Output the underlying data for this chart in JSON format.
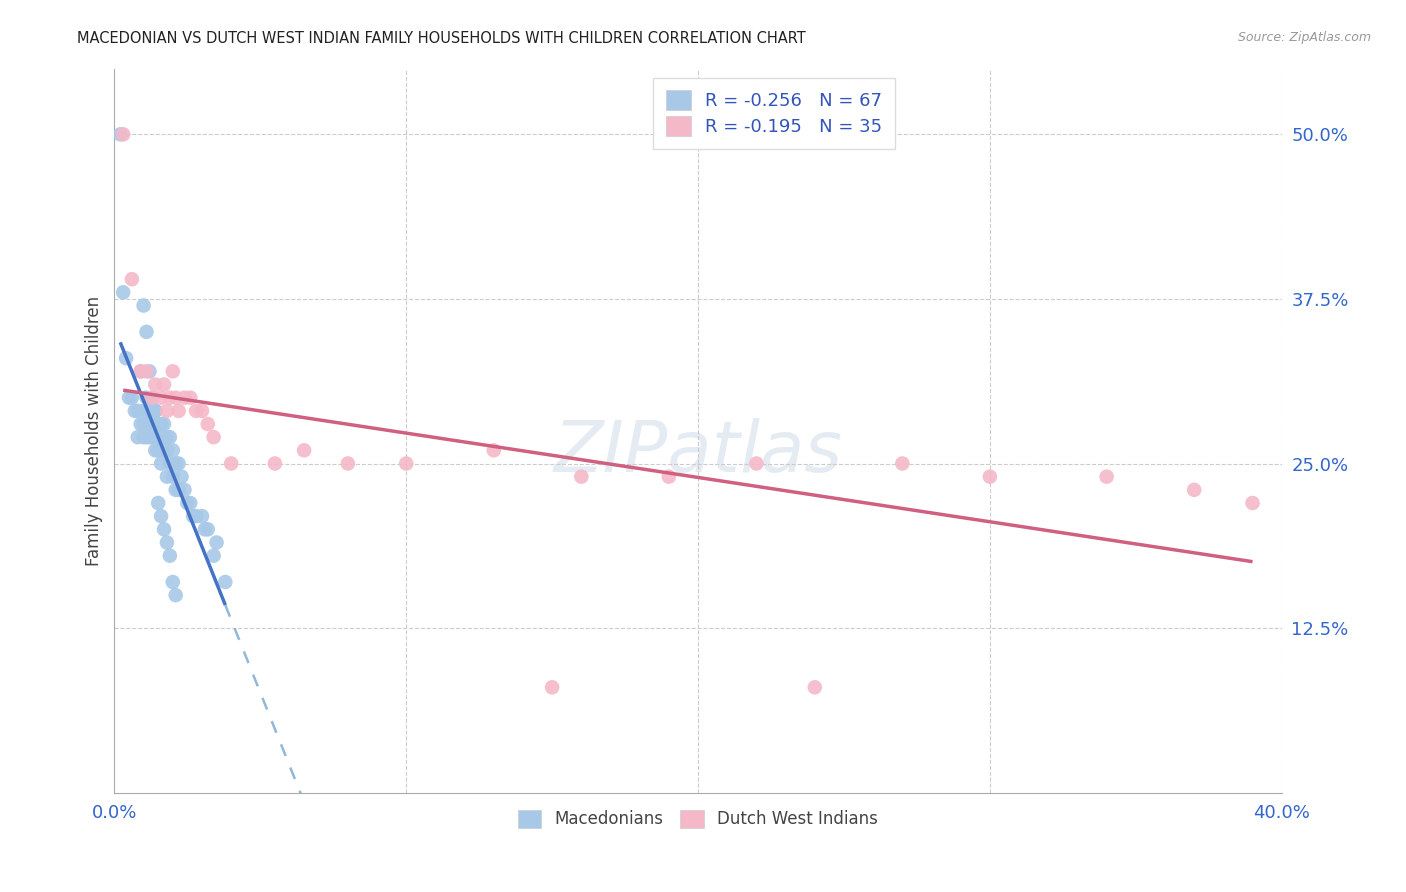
{
  "title": "MACEDONIAN VS DUTCH WEST INDIAN FAMILY HOUSEHOLDS WITH CHILDREN CORRELATION CHART",
  "source": "Source: ZipAtlas.com",
  "ylabel": "Family Households with Children",
  "xlim": [
    0.0,
    0.4
  ],
  "ylim": [
    0.0,
    0.55
  ],
  "xticks": [
    0.0,
    0.05,
    0.1,
    0.15,
    0.2,
    0.25,
    0.3,
    0.35,
    0.4
  ],
  "xticklabels": [
    "0.0%",
    "",
    "",
    "",
    "",
    "",
    "",
    "",
    "40.0%"
  ],
  "yticks_right": [
    0.125,
    0.25,
    0.375,
    0.5
  ],
  "ytick_labels_right": [
    "12.5%",
    "25.0%",
    "37.5%",
    "50.0%"
  ],
  "legend_r1": "-0.256",
  "legend_n1": "67",
  "legend_r2": "-0.195",
  "legend_n2": "35",
  "color_macedonian": "#a8c8e8",
  "color_dutch": "#f4b8c8",
  "color_trend_macedonian": "#4472c4",
  "color_trend_dutch": "#d06080",
  "color_trend_dashed": "#90b8d8",
  "macedonian_x": [
    0.002,
    0.003,
    0.004,
    0.005,
    0.006,
    0.007,
    0.008,
    0.008,
    0.009,
    0.009,
    0.01,
    0.01,
    0.01,
    0.011,
    0.011,
    0.011,
    0.012,
    0.012,
    0.013,
    0.013,
    0.013,
    0.014,
    0.014,
    0.014,
    0.015,
    0.015,
    0.015,
    0.016,
    0.016,
    0.016,
    0.017,
    0.017,
    0.018,
    0.018,
    0.018,
    0.019,
    0.019,
    0.02,
    0.02,
    0.021,
    0.021,
    0.022,
    0.022,
    0.023,
    0.024,
    0.025,
    0.026,
    0.027,
    0.028,
    0.03,
    0.031,
    0.032,
    0.034,
    0.035,
    0.038,
    0.01,
    0.011,
    0.012,
    0.013,
    0.014,
    0.015,
    0.016,
    0.017,
    0.018,
    0.019,
    0.02,
    0.021
  ],
  "macedonian_y": [
    0.5,
    0.38,
    0.33,
    0.3,
    0.3,
    0.29,
    0.29,
    0.27,
    0.32,
    0.28,
    0.29,
    0.28,
    0.27,
    0.3,
    0.28,
    0.27,
    0.29,
    0.27,
    0.3,
    0.28,
    0.27,
    0.29,
    0.27,
    0.26,
    0.28,
    0.27,
    0.26,
    0.28,
    0.27,
    0.25,
    0.28,
    0.26,
    0.27,
    0.26,
    0.24,
    0.27,
    0.25,
    0.26,
    0.24,
    0.25,
    0.23,
    0.25,
    0.23,
    0.24,
    0.23,
    0.22,
    0.22,
    0.21,
    0.21,
    0.21,
    0.2,
    0.2,
    0.18,
    0.19,
    0.16,
    0.37,
    0.35,
    0.32,
    0.3,
    0.29,
    0.22,
    0.21,
    0.2,
    0.19,
    0.18,
    0.16,
    0.15
  ],
  "dutch_x": [
    0.003,
    0.006,
    0.009,
    0.011,
    0.013,
    0.014,
    0.016,
    0.017,
    0.018,
    0.019,
    0.02,
    0.021,
    0.022,
    0.024,
    0.026,
    0.028,
    0.03,
    0.032,
    0.034,
    0.04,
    0.055,
    0.065,
    0.08,
    0.1,
    0.13,
    0.16,
    0.19,
    0.22,
    0.27,
    0.3,
    0.34,
    0.37,
    0.39,
    0.15,
    0.24
  ],
  "dutch_y": [
    0.5,
    0.39,
    0.32,
    0.32,
    0.3,
    0.31,
    0.3,
    0.31,
    0.29,
    0.3,
    0.32,
    0.3,
    0.29,
    0.3,
    0.3,
    0.29,
    0.29,
    0.28,
    0.27,
    0.25,
    0.25,
    0.26,
    0.25,
    0.25,
    0.26,
    0.24,
    0.24,
    0.25,
    0.25,
    0.24,
    0.24,
    0.23,
    0.22,
    0.08,
    0.08
  ]
}
